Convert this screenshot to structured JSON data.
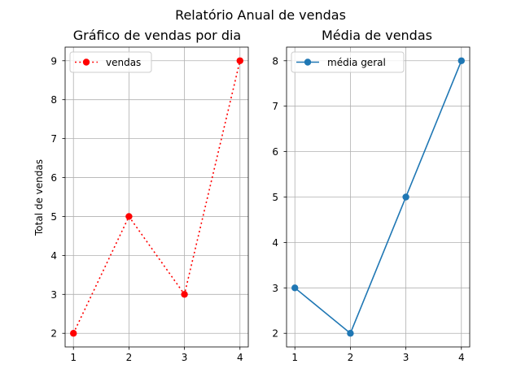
{
  "figure": {
    "suptitle": "Relatório Anual de vendas"
  },
  "chart_data": [
    {
      "type": "line",
      "title": "Gráfico de vendas por dia",
      "xlabel": "",
      "ylabel": "Total de vendas",
      "x": [
        1,
        2,
        3,
        4
      ],
      "xticks": [
        1,
        2,
        3,
        4
      ],
      "yticks": [
        2,
        3,
        4,
        5,
        6,
        7,
        8,
        9
      ],
      "xlim": [
        0.85,
        4.15
      ],
      "ylim": [
        1.65,
        9.35
      ],
      "grid": true,
      "legend_position": "upper-left",
      "series": [
        {
          "name": "vendas",
          "values": [
            2,
            5,
            3,
            9
          ],
          "color": "#ff0000",
          "linestyle": "dotted",
          "marker": "circle"
        }
      ]
    },
    {
      "type": "line",
      "title": "Média de vendas",
      "xlabel": "",
      "ylabel": "",
      "x": [
        1,
        2,
        3,
        4
      ],
      "xticks": [
        1,
        2,
        3,
        4
      ],
      "yticks": [
        2,
        3,
        4,
        5,
        6,
        7,
        8
      ],
      "xlim": [
        0.85,
        4.15
      ],
      "ylim": [
        1.7,
        8.3
      ],
      "grid": true,
      "legend_position": "upper-left",
      "series": [
        {
          "name": "média geral",
          "values": [
            3,
            2,
            5,
            8
          ],
          "color": "#1f77b4",
          "linestyle": "solid",
          "marker": "circle"
        }
      ]
    }
  ]
}
